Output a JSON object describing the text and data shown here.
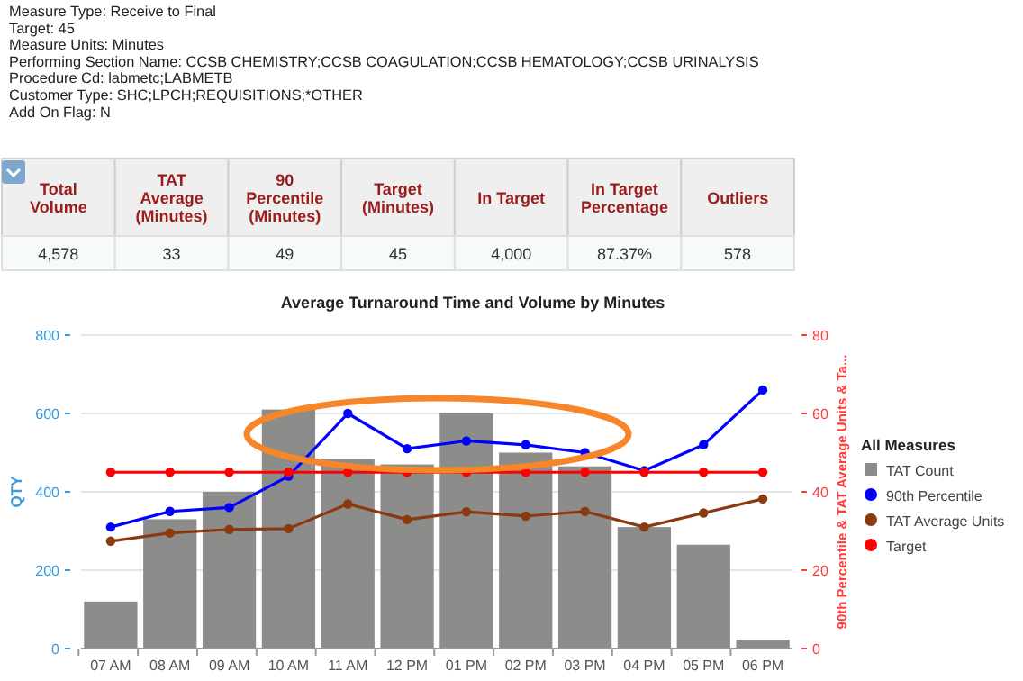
{
  "chart_data": [
    {
      "type": "other",
      "annotations": [
        "Measure Type: Receive to Final",
        "Target: 45",
        "Measure Units: Minutes",
        "Performing Section Name: CCSB CHEMISTRY;CCSB COAGULATION;CCSB HEMATOLOGY;CCSB URINALYSIS",
        "Procedure Cd: labmetc;LABMETB",
        "Customer Type: SHC;LPCH;REQUISITIONS;*OTHER",
        "Add On Flag: N"
      ],
      "categories": [
        "Total Volume",
        "TAT Average (Minutes)",
        "90 Percentile (Minutes)",
        "Target (Minutes)",
        "In Target",
        "In Target Percentage",
        "Outliers"
      ],
      "value_labels": [
        "4,578",
        "33",
        "49",
        "45",
        "4,000",
        "87.37%",
        "578"
      ]
    },
    {
      "type": "bar",
      "title": "Average Turnaround Time and Volume by Minutes",
      "ylabel": "QTY",
      "y2label": "90th Percentile & TAT Average Units & Ta...",
      "legend_title": "All Measures",
      "categories": [
        "07 AM",
        "08 AM",
        "09 AM",
        "10 AM",
        "11 AM",
        "12 PM",
        "01 PM",
        "02 PM",
        "03 PM",
        "04 PM",
        "05 PM",
        "06 PM"
      ],
      "series": [
        {
          "name": "TAT Count",
          "type": "bar",
          "color": "#8c8c8a",
          "values": [
            120,
            330,
            400,
            610,
            485,
            470,
            600,
            500,
            465,
            310,
            265,
            23
          ]
        },
        {
          "name": "90th Percentile",
          "type": "line",
          "axis": "y2",
          "color": "#0000ff",
          "values": [
            31,
            35,
            36,
            44,
            60,
            51,
            53,
            52,
            50,
            45.4,
            52,
            66
          ]
        },
        {
          "name": "TAT Average Units",
          "type": "line",
          "axis": "y2",
          "color": "#8b3a0f",
          "values": [
            27.4,
            29.5,
            30.4,
            30.6,
            36.9,
            32.9,
            34.9,
            33.8,
            35,
            31,
            34.6,
            38.2
          ]
        },
        {
          "name": "Target",
          "type": "line",
          "axis": "y2",
          "color": "#ff0000",
          "values": [
            45,
            45,
            45,
            45,
            45,
            45,
            45,
            45,
            45,
            45,
            45,
            45
          ]
        }
      ],
      "ylim": [
        0,
        800
      ],
      "yticks": [
        0,
        200,
        400,
        600,
        800
      ],
      "y2lim": [
        0,
        80
      ],
      "y2ticks": [
        0,
        20,
        40,
        60,
        80
      ],
      "grid": "y",
      "legend": "right",
      "marker": "circle"
    }
  ]
}
